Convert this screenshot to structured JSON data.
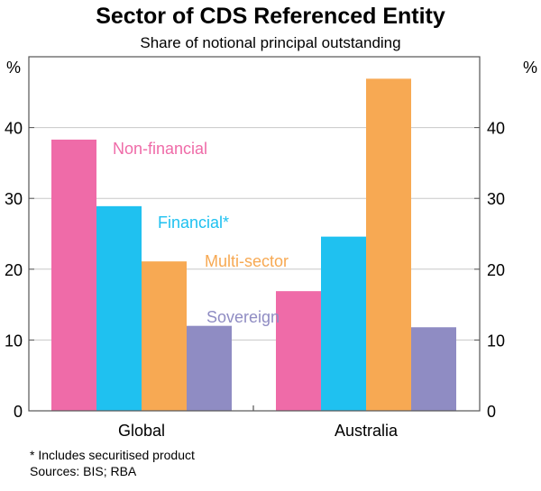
{
  "chart_data": {
    "type": "bar",
    "title": "Sector of CDS Referenced Entity",
    "subtitle": "Share of notional principal outstanding",
    "categories": [
      "Global",
      "Australia"
    ],
    "series": [
      {
        "name": "Non-financial",
        "color": "#EF6BA8",
        "values": [
          38.3,
          16.9
        ]
      },
      {
        "name": "Financial*",
        "color": "#1FC1F0",
        "values": [
          28.9,
          24.6
        ]
      },
      {
        "name": "Multi-sector",
        "color": "#F7A953",
        "values": [
          21.1,
          46.9
        ]
      },
      {
        "name": "Sovereign",
        "color": "#8F8CC3",
        "values": [
          12.0,
          11.8
        ]
      }
    ],
    "ylabel": "%",
    "ylim": [
      0,
      50
    ],
    "yticks": [
      0,
      10,
      20,
      30,
      40
    ],
    "grid": true,
    "legend": "inline labels"
  },
  "footnote": "*     Includes securitised product",
  "sources": "Sources: BIS; RBA"
}
